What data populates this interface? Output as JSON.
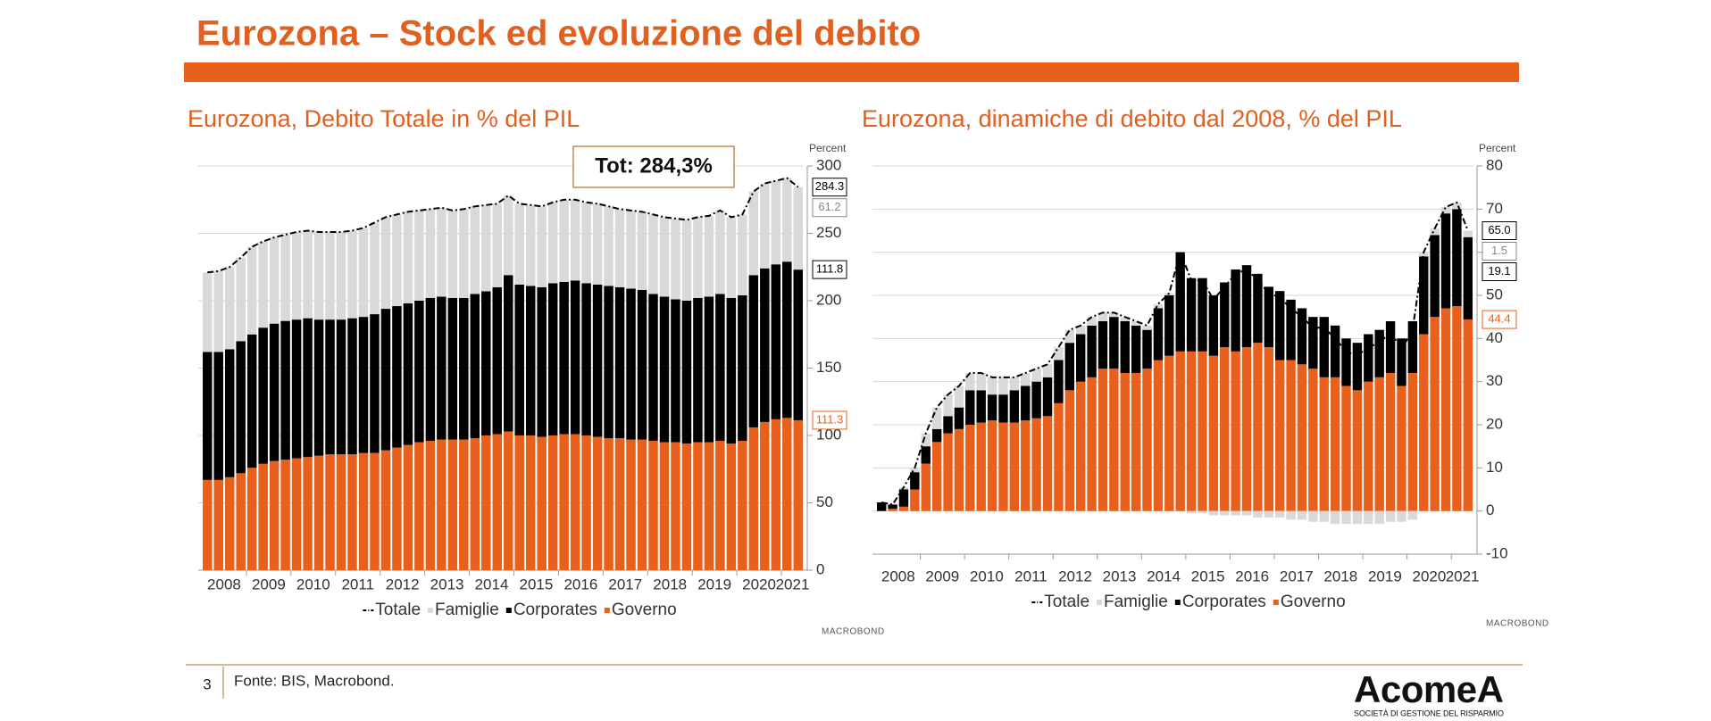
{
  "header": {
    "title": "Eurozona – Stock ed evoluzione del debito"
  },
  "chart_data": [
    {
      "type": "stacked_bar",
      "title": "Eurozona, Debito Totale in % del PIL",
      "y_label": "Percent",
      "annotation": "Tot: 284,3%",
      "watermark": "MACROBOND",
      "year_labels": [
        "2008",
        "2009",
        "2010",
        "2011",
        "2012",
        "2013",
        "2014",
        "2015",
        "2016",
        "2017",
        "2018",
        "2019",
        "2020",
        "2021"
      ],
      "ylim": [
        0,
        300
      ],
      "yticks": [
        0,
        50,
        100,
        150,
        200,
        250,
        300
      ],
      "grid": true,
      "series": [
        {
          "name": "Totale",
          "type": "line",
          "color": "#000000",
          "values": [
            221,
            222,
            225,
            232,
            240,
            244,
            247,
            249,
            251,
            252,
            251,
            251,
            251,
            252,
            254,
            258,
            262,
            264,
            266,
            267,
            268,
            269,
            267,
            268,
            270,
            271,
            272,
            278,
            272,
            271,
            270,
            273,
            275,
            275,
            273,
            272,
            270,
            268,
            267,
            266,
            264,
            262,
            261,
            260,
            262,
            263,
            267,
            262,
            264,
            281,
            287,
            289,
            291,
            284.3
          ]
        },
        {
          "name": "Famiglie",
          "color": "#d9d9d9",
          "values": [
            59,
            60,
            61,
            62,
            65,
            64,
            64,
            64,
            65,
            65,
            65,
            65,
            65,
            65,
            66,
            68,
            68,
            68,
            68,
            67,
            66,
            66,
            65,
            66,
            65,
            64,
            62,
            59,
            60,
            60,
            60,
            60,
            61,
            60,
            60,
            60,
            59,
            58,
            58,
            58,
            59,
            59,
            60,
            60,
            60,
            60,
            62,
            60,
            60,
            62,
            63,
            62,
            62,
            61.2
          ]
        },
        {
          "name": "Corporates",
          "color": "#000000",
          "values": [
            95,
            95,
            95,
            98,
            99,
            101,
            102,
            103,
            103,
            103,
            101,
            100,
            100,
            101,
            101,
            103,
            105,
            105,
            105,
            105,
            106,
            106,
            105,
            105,
            107,
            107,
            109,
            116,
            112,
            111,
            111,
            113,
            113,
            114,
            113,
            113,
            113,
            112,
            112,
            111,
            109,
            108,
            106,
            106,
            107,
            108,
            109,
            108,
            108,
            113,
            114,
            115,
            116,
            111.8
          ]
        },
        {
          "name": "Governo",
          "color": "#e8601c",
          "values": [
            67,
            67,
            69,
            72,
            76,
            79,
            81,
            82,
            83,
            84,
            85,
            86,
            86,
            86,
            87,
            87,
            89,
            91,
            93,
            95,
            96,
            97,
            97,
            97,
            98,
            100,
            101,
            103,
            100,
            100,
            99,
            100,
            101,
            101,
            100,
            99,
            98,
            98,
            97,
            97,
            96,
            95,
            95,
            94,
            95,
            95,
            96,
            94,
            96,
            106,
            110,
            112,
            113,
            111.3
          ]
        }
      ]
    },
    {
      "type": "stacked_bar",
      "title": "Eurozona, dinamiche di debito dal 2008, % del PIL",
      "y_label": "Percent",
      "watermark": "MACROBOND",
      "year_labels": [
        "2008",
        "2009",
        "2010",
        "2011",
        "2012",
        "2013",
        "2014",
        "2015",
        "2016",
        "2017",
        "2018",
        "2019",
        "2020",
        "2021"
      ],
      "ylim": [
        -10,
        80
      ],
      "yticks": [
        -10,
        0,
        10,
        20,
        30,
        40,
        50,
        60,
        70,
        80
      ],
      "grid": true,
      "series": [
        {
          "name": "Totale",
          "type": "line",
          "color": "#000000",
          "values": [
            2,
            1.5,
            5.5,
            10,
            18,
            24,
            27,
            29,
            32,
            32,
            31,
            31,
            31,
            32,
            33,
            34,
            38,
            42,
            43,
            45,
            46,
            46,
            45,
            44,
            43,
            48,
            50.5,
            60,
            53.5,
            53.5,
            49,
            52,
            55,
            56,
            53.5,
            50.5,
            49.5,
            47,
            45,
            42.5,
            42.5,
            40,
            37,
            36,
            38,
            39,
            41.5,
            37.5,
            42,
            60,
            65.5,
            70.5,
            71.5,
            65
          ],
          "value_labels": [
            null,
            null,
            null,
            null,
            null,
            null,
            null,
            null,
            null,
            null,
            null,
            null,
            null,
            null,
            null,
            null,
            null,
            null,
            null,
            null,
            null,
            null,
            null,
            null,
            null,
            null,
            null,
            null,
            null,
            null,
            null,
            null,
            null,
            null,
            null,
            null,
            null,
            null,
            null,
            null,
            null,
            null,
            null,
            null,
            null,
            null,
            null,
            null,
            null,
            null,
            null,
            null,
            null,
            "65.0"
          ]
        },
        {
          "name": "Famiglie",
          "color": "#d9d9d9",
          "values": [
            0,
            0,
            0.5,
            1,
            3,
            5,
            5,
            5,
            4,
            4,
            4,
            4,
            3,
            3,
            3,
            3,
            3,
            3,
            2,
            2,
            2,
            1,
            1,
            1,
            1,
            1,
            0.5,
            0,
            -0.5,
            -0.5,
            -1,
            -1,
            -1,
            -1,
            -1.5,
            -1.5,
            -1.5,
            -2,
            -2,
            -2.5,
            -2.5,
            -3,
            -3,
            -3,
            -3,
            -3,
            -2.5,
            -2.5,
            -2,
            1,
            1.5,
            1.5,
            1.5,
            1.5
          ]
        },
        {
          "name": "Corporates",
          "color": "#000000",
          "values": [
            2,
            1,
            4,
            4,
            4,
            3,
            4,
            5,
            8,
            7.5,
            6,
            6.5,
            7.5,
            8,
            8.5,
            9,
            10,
            11,
            11,
            12,
            11,
            12,
            12,
            11,
            9,
            12,
            14,
            23,
            17,
            17,
            14,
            15,
            19,
            19,
            16,
            14,
            16,
            14,
            13,
            12,
            14,
            12,
            11,
            11,
            11,
            11,
            12,
            11,
            12,
            18,
            19,
            22,
            22.5,
            19.1
          ]
        },
        {
          "name": "Governo",
          "color": "#e8601c",
          "values": [
            0,
            0.5,
            1,
            5,
            11,
            16,
            18,
            19,
            20,
            20.5,
            21,
            20.5,
            20.5,
            21,
            21.5,
            22,
            25,
            28,
            30,
            31,
            33,
            33,
            32,
            32,
            33,
            35,
            36,
            37,
            37,
            37,
            36,
            38,
            37,
            38,
            39,
            38,
            35,
            35,
            34,
            33,
            31,
            31,
            29,
            28,
            30,
            31,
            32,
            29,
            32,
            41,
            45,
            47,
            47.5,
            44.4
          ]
        }
      ]
    }
  ],
  "footer": {
    "page": 3,
    "source": "Fonte: BIS, Macrobond."
  },
  "logo": {
    "name": "AcomeA",
    "tagline": "SOCIETÀ DI GESTIONE DEL RISPARMIO"
  }
}
